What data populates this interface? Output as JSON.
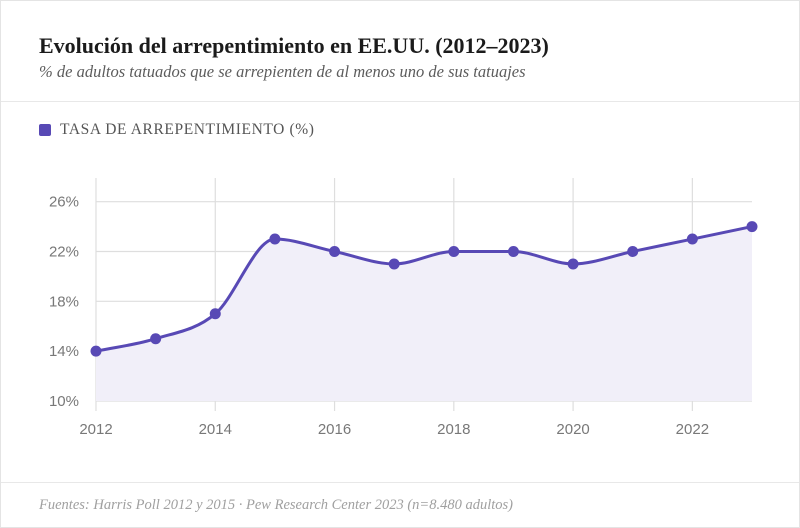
{
  "header": {
    "title": "Evolución del arrepentimiento en EE.UU. (2012–2023)",
    "subtitle": "% de adultos tatuados que se arrepienten de al menos uno de sus tatuajes"
  },
  "legend": {
    "label": "TASA DE ARREPENTIMIENTO (%)",
    "color": "#5849b5"
  },
  "footer": {
    "source": "Fuentes: Harris Poll 2012 y 2015 · Pew Research Center 2023 (n=8.480 adultos)"
  },
  "colors": {
    "line": "#5849b5",
    "area": "#f1eff9",
    "grid": "#dedede"
  },
  "chart_data": {
    "type": "area",
    "x": [
      2012,
      2013,
      2014,
      2015,
      2016,
      2017,
      2018,
      2019,
      2020,
      2021,
      2022,
      2023
    ],
    "series": [
      {
        "values": [
          14,
          15,
          17,
          23,
          22,
          21,
          22,
          22,
          21,
          22,
          23,
          24
        ]
      }
    ],
    "xticks": [
      2012,
      2014,
      2016,
      2018,
      2020,
      2022
    ],
    "xtick_labels": [
      "2012",
      "2014",
      "2016",
      "2018",
      "2020",
      "2022"
    ],
    "yticks": [
      10,
      14,
      18,
      22,
      26
    ],
    "ytick_labels": [
      "10%",
      "14%",
      "18%",
      "22%",
      "26%"
    ],
    "xlim": [
      2012,
      2023
    ],
    "ylim": [
      10,
      27.9
    ],
    "grid": true,
    "smooth": true,
    "legend_position": "top-left"
  }
}
